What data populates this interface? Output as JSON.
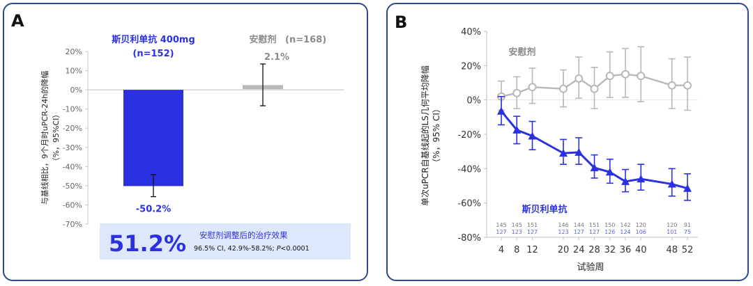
{
  "panels": {
    "a": {
      "letter": "A"
    },
    "b": {
      "letter": "B"
    }
  },
  "colors": {
    "drug": "#2b31e0",
    "placebo": "#b8b8b8",
    "placebo_text": "#8a8a8a",
    "box_bg": "#dde9fb",
    "panel_border": "#2b4a8a"
  },
  "chart_data": [
    {
      "type": "bar",
      "panel": "A",
      "ylabel_line1": "与基线相比，9个月时uPCR-24h的降幅",
      "ylabel_line2": "（%，95%CI）",
      "yticks": [
        "20%",
        "10%",
        "0%",
        "-10%",
        "-20%",
        "-30%",
        "-40%",
        "-50%",
        "-60%",
        "-70%"
      ],
      "ylim": [
        -70,
        20
      ],
      "series": [
        {
          "name": "斯贝利单抗 400mg",
          "n_label": "(n=152)",
          "value": -50.2,
          "value_label": "-50.2%",
          "ci": [
            -55.7,
            -44.2
          ],
          "color": "#2b31e0"
        },
        {
          "name": "安慰剂",
          "n_label": "(n=168)",
          "value": 2.1,
          "value_label": "2.1%",
          "ci": [
            -8.3,
            13.5
          ],
          "color": "#b8b8b8"
        }
      ],
      "summary": {
        "big_value": "51.2%",
        "title": "安慰剂调整后的治疗效果",
        "ci_text": "96.5% CI, 42.9%-58.2%; ",
        "p_label": "P",
        "p_text": "<0.0001"
      }
    },
    {
      "type": "line",
      "panel": "B",
      "ylabel_line1": "单次uPCR自基线起的LS几何平均降幅",
      "ylabel_line2": "（%，95% CI）",
      "xlabel": "试验周",
      "yticks": [
        "40%",
        "20%",
        "0%",
        "-20%",
        "-40%",
        "-60%",
        "-80%"
      ],
      "ylim": [
        -80,
        40
      ],
      "x": [
        4,
        8,
        12,
        20,
        24,
        28,
        32,
        36,
        40,
        48,
        52
      ],
      "x_tick_labels": [
        "4",
        "8",
        "12",
        "20",
        "24",
        "28",
        "32",
        "36",
        "40",
        "48",
        "52"
      ],
      "series": [
        {
          "name": "安慰剂",
          "color": "#b8b8b8",
          "values": [
            2,
            4,
            7.5,
            6.5,
            12.5,
            6.5,
            14,
            15,
            14,
            8.5,
            8.5
          ],
          "lower": [
            -6,
            -5,
            -2,
            -4,
            1,
            -5,
            1.5,
            1.5,
            -1,
            -5,
            -6
          ],
          "upper": [
            11,
            13.5,
            18.5,
            17.5,
            25,
            19,
            28,
            30,
            31,
            24,
            25
          ],
          "n_row": [
            "145",
            "145",
            "151",
            "146",
            "144",
            "151",
            "150",
            "142",
            "120",
            "120",
            "91"
          ]
        },
        {
          "name": "斯贝利单抗",
          "color": "#2b31e0",
          "values": [
            -6.5,
            -17.5,
            -21,
            -31,
            -30.5,
            -39.5,
            -42,
            -47.5,
            -46,
            -49,
            -51.5
          ],
          "lower": [
            -14.5,
            -25.5,
            -29,
            -37.5,
            -37.5,
            -45.5,
            -48.5,
            -53.5,
            -52.5,
            -56,
            -58.5
          ],
          "upper": [
            2,
            -9.5,
            -12.5,
            -23,
            -22,
            -32,
            -34.5,
            -40.5,
            -37.5,
            -40,
            -43
          ],
          "n_row": [
            "127",
            "123",
            "127",
            "123",
            "127",
            "127",
            "126",
            "124",
            "106",
            "101",
            "75"
          ]
        }
      ]
    }
  ]
}
